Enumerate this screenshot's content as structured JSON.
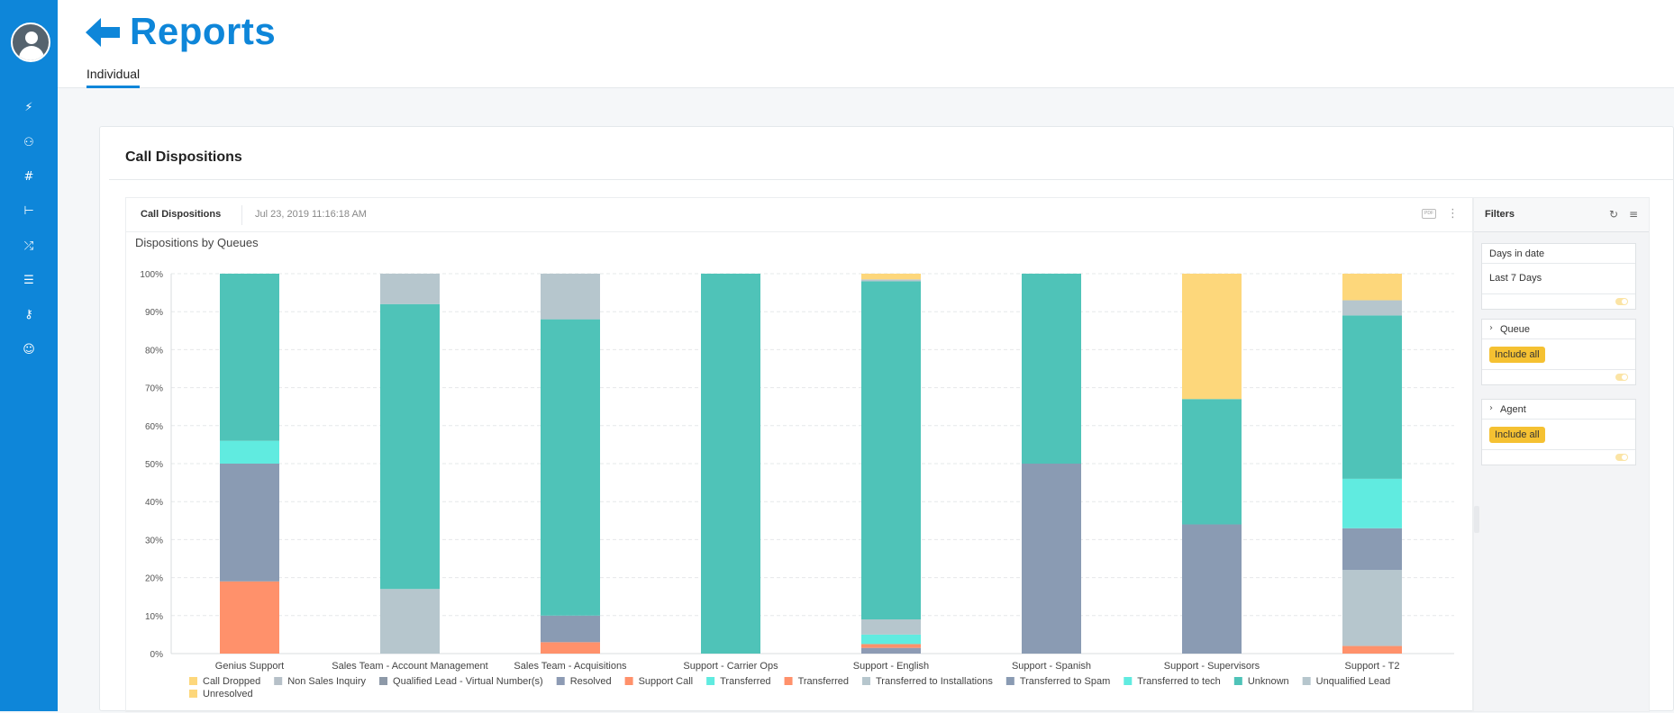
{
  "header": {
    "title": "Reports",
    "tab": "Individual"
  },
  "card": {
    "title": "Call Dispositions"
  },
  "panel": {
    "name": "Call Dispositions",
    "date": "Jul 23, 2019 11:16:18 AM",
    "pdf_label": "PDF"
  },
  "filters": {
    "title": "Filters",
    "days": {
      "label": "Days in date",
      "value": "Last 7 Days"
    },
    "queue": {
      "label": "Queue",
      "value": "Include all"
    },
    "agent": {
      "label": "Agent",
      "value": "Include all"
    }
  },
  "chart_data": {
    "type": "bar",
    "stacked": true,
    "percent": true,
    "title": "Dispositions by Queues",
    "ylim": [
      0,
      100
    ],
    "y_ticks": [
      "0%",
      "10%",
      "20%",
      "30%",
      "40%",
      "50%",
      "60%",
      "70%",
      "80%",
      "90%",
      "100%"
    ],
    "categories": [
      "Genius Support",
      "Sales Team - Account Management",
      "Sales Team - Acquisitions",
      "Support - Carrier Ops",
      "Support - English",
      "Support - Spanish",
      "Support - Supervisors",
      "Support - T2"
    ],
    "legend_position": "bottom",
    "series": [
      {
        "name": "Call Dropped",
        "color": "#fdd77b",
        "values": [
          0,
          0,
          0,
          0,
          0,
          0,
          0,
          0
        ]
      },
      {
        "name": "Non Sales Inquiry",
        "color": "#b6c0c8",
        "values": [
          0,
          0,
          0,
          0,
          0,
          0,
          0,
          0
        ]
      },
      {
        "name": "Qualified Lead - Virtual Number(s)",
        "color": "#8d99a8",
        "values": [
          0,
          0,
          0,
          0,
          0,
          0,
          0,
          0
        ]
      },
      {
        "name": "Resolved",
        "color": "#8d9bb4",
        "values": [
          0,
          0,
          0,
          0,
          1.5,
          0,
          0,
          0
        ]
      },
      {
        "name": "Support Call",
        "color": "#ff916b",
        "values": [
          0,
          0,
          0,
          0,
          1,
          0,
          0,
          0
        ]
      },
      {
        "name": "Transferred",
        "color": "#60ebe0",
        "values": [
          0,
          0,
          0,
          0,
          2.5,
          0,
          0,
          0
        ]
      },
      {
        "name": "Transferred",
        "color": "#ff916b",
        "values": [
          19,
          0,
          3,
          0,
          0,
          0,
          0,
          2
        ]
      },
      {
        "name": "Transferred to Installations",
        "color": "#b6c6cd",
        "values": [
          0,
          17,
          0,
          0,
          4,
          0,
          0,
          20
        ]
      },
      {
        "name": "Transferred to Spam",
        "color": "#8a9bb3",
        "values": [
          31,
          0,
          7,
          0,
          0,
          50,
          34,
          11
        ]
      },
      {
        "name": "Transferred to tech",
        "color": "#60ebe0",
        "values": [
          6,
          0,
          0,
          0,
          0,
          0,
          0,
          13
        ]
      },
      {
        "name": "Unknown",
        "color": "#4fc3b8",
        "values": [
          44,
          75,
          78,
          100,
          89,
          50,
          33,
          43
        ]
      },
      {
        "name": "Unqualified Lead",
        "color": "#b6c6cd",
        "values": [
          0,
          8,
          12,
          0,
          0.5,
          0,
          0,
          4
        ]
      },
      {
        "name": "Unresolved",
        "color": "#fdd77b",
        "values": [
          0,
          0,
          0,
          0,
          1.5,
          0,
          33,
          7
        ]
      }
    ]
  }
}
